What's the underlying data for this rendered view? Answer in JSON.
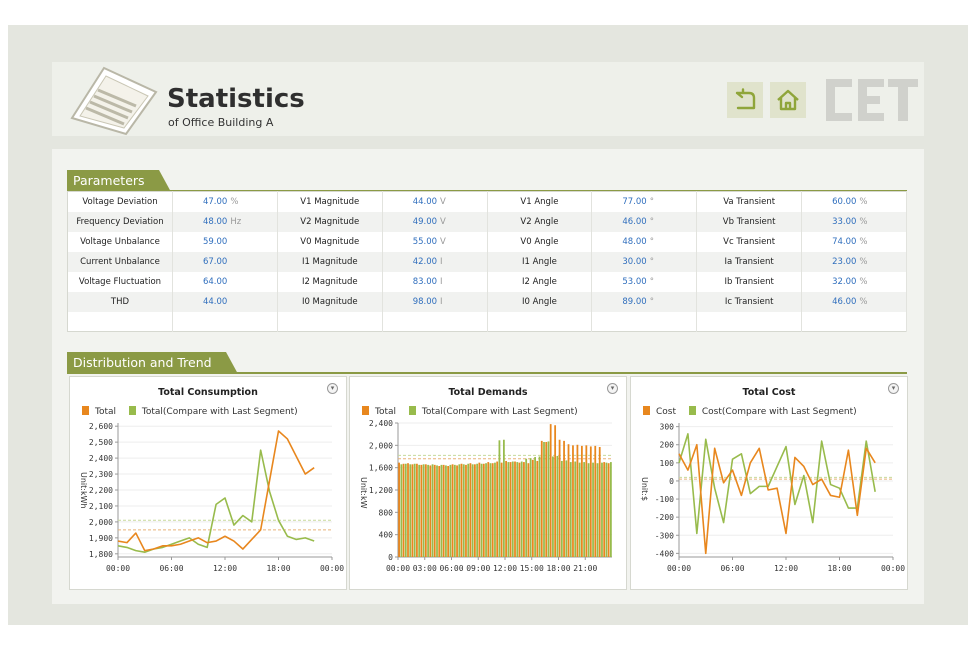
{
  "header": {
    "title": "Statistics",
    "subtitle": "of Office Building A",
    "brand": "CET"
  },
  "sections": {
    "parameters": "Parameters",
    "distribution": "Distribution and Trend"
  },
  "parameters": {
    "rows": [
      [
        {
          "label": "Voltage Deviation",
          "value": "47.00",
          "unit": "%"
        },
        {
          "label": "V1 Magnitude",
          "value": "44.00",
          "unit": "V"
        },
        {
          "label": "V1 Angle",
          "value": "77.00",
          "unit": "°"
        },
        {
          "label": "Va Transient",
          "value": "60.00",
          "unit": "%"
        }
      ],
      [
        {
          "label": "Frequency Deviation",
          "value": "48.00",
          "unit": "Hz"
        },
        {
          "label": "V2 Magnitude",
          "value": "49.00",
          "unit": "V"
        },
        {
          "label": "V2 Angle",
          "value": "46.00",
          "unit": "°"
        },
        {
          "label": "Vb Transient",
          "value": "33.00",
          "unit": "%"
        }
      ],
      [
        {
          "label": "Voltage Unbalance",
          "value": "59.00",
          "unit": ""
        },
        {
          "label": "V0 Magnitude",
          "value": "55.00",
          "unit": "V"
        },
        {
          "label": "V0 Angle",
          "value": "48.00",
          "unit": "°"
        },
        {
          "label": "Vc Transient",
          "value": "74.00",
          "unit": "%"
        }
      ],
      [
        {
          "label": "Current Unbalance",
          "value": "67.00",
          "unit": ""
        },
        {
          "label": "I1 Magnitude",
          "value": "42.00",
          "unit": "I"
        },
        {
          "label": "I1 Angle",
          "value": "30.00",
          "unit": "°"
        },
        {
          "label": "Ia Transient",
          "value": "23.00",
          "unit": "%"
        }
      ],
      [
        {
          "label": "Voltage Fluctuation",
          "value": "64.00",
          "unit": ""
        },
        {
          "label": "I2 Magnitude",
          "value": "83.00",
          "unit": "I"
        },
        {
          "label": "I2 Angle",
          "value": "53.00",
          "unit": "°"
        },
        {
          "label": "Ib Transient",
          "value": "32.00",
          "unit": "%"
        }
      ],
      [
        {
          "label": "THD",
          "value": "44.00",
          "unit": ""
        },
        {
          "label": "I0 Magnitude",
          "value": "98.00",
          "unit": "I"
        },
        {
          "label": "I0 Angle",
          "value": "89.00",
          "unit": "°"
        },
        {
          "label": "Ic Transient",
          "value": "46.00",
          "unit": "%"
        }
      ]
    ]
  },
  "colors": {
    "orange": "#e8871e",
    "green": "#98bb4c",
    "accent": "#8b9a45",
    "value_blue": "#2f6ebd"
  },
  "chart_data": [
    {
      "type": "line",
      "title": "Total Consumption",
      "ylabel": "Unit:kWh",
      "legend": [
        "Total",
        "Total(Compare with Last Segment)"
      ],
      "x_ticks": [
        "00:00",
        "06:00",
        "12:00",
        "18:00",
        "00:00"
      ],
      "y_ticks": [
        1800,
        1900,
        2000,
        2100,
        2200,
        2300,
        2400,
        2500,
        2600
      ],
      "y_tick_labels": [
        "1,800",
        "1,900",
        "2,000",
        "2,100",
        "2,200",
        "2,300",
        "2,400",
        "2,500",
        "2,600"
      ],
      "ylim": [
        1780,
        2620
      ],
      "xlim": [
        0,
        24
      ],
      "series": [
        {
          "name": "Total",
          "color": "#e8871e",
          "x": [
            0,
            1,
            2,
            3,
            4,
            5,
            6,
            7,
            8,
            9,
            10,
            11,
            12,
            13,
            14,
            15,
            16,
            17,
            18,
            19,
            20,
            21,
            22
          ],
          "values": [
            1880,
            1870,
            1930,
            1820,
            1830,
            1850,
            1850,
            1860,
            1880,
            1900,
            1870,
            1880,
            1910,
            1880,
            1830,
            1890,
            1950,
            2260,
            2570,
            2520,
            2410,
            2300,
            2340
          ]
        },
        {
          "name": "Total(Compare with Last Segment)",
          "color": "#98bb4c",
          "x": [
            0,
            1,
            2,
            3,
            4,
            5,
            6,
            7,
            8,
            9,
            10,
            11,
            12,
            13,
            14,
            15,
            16,
            17,
            18,
            19,
            20,
            21,
            22
          ],
          "values": [
            1850,
            1840,
            1820,
            1810,
            1830,
            1840,
            1860,
            1880,
            1900,
            1860,
            1840,
            2110,
            2150,
            1980,
            2040,
            2000,
            2450,
            2190,
            2010,
            1910,
            1890,
            1900,
            1880
          ]
        }
      ],
      "avg_lines": [
        1950,
        2010
      ]
    },
    {
      "type": "bar",
      "title": "Total Demands",
      "ylabel": "Unit:kW",
      "legend": [
        "Total",
        "Total(Compare with Last Segment)"
      ],
      "x_ticks": [
        "00:00",
        "03:00",
        "06:00",
        "09:00",
        "12:00",
        "15:00",
        "18:00",
        "21:00"
      ],
      "y_ticks": [
        0,
        400,
        800,
        1200,
        1600,
        2000,
        2400
      ],
      "y_tick_labels": [
        "0",
        "400",
        "800",
        "1,200",
        "1,600",
        "2,000",
        "2,400"
      ],
      "ylim": [
        0,
        2400
      ],
      "xlim": [
        0,
        24
      ],
      "series": [
        {
          "name": "Total",
          "color": "#e8871e",
          "hourly": [
            1690,
            1680,
            1670,
            1660,
            1650,
            1650,
            1660,
            1670,
            1680,
            1690,
            1700,
            1710,
            1720,
            1710,
            1700,
            1740,
            2080,
            2380,
            2100,
            2020,
            2010,
            2000,
            1990,
            1700
          ]
        },
        {
          "name": "Total(Compare with Last Segment)",
          "color": "#98bb4c",
          "hourly": [
            1660,
            1660,
            1650,
            1650,
            1640,
            1640,
            1650,
            1660,
            1660,
            1670,
            1680,
            2090,
            1700,
            1700,
            1760,
            1790,
            2060,
            1800,
            1720,
            1700,
            1690,
            1680,
            1680,
            1690
          ]
        }
      ],
      "avg_lines": [
        1760,
        1820
      ]
    },
    {
      "type": "line",
      "title": "Total Cost",
      "ylabel": "Unit:$",
      "legend": [
        "Cost",
        "Cost(Compare with Last Segment)"
      ],
      "x_ticks": [
        "00:00",
        "06:00",
        "12:00",
        "18:00",
        "00:00"
      ],
      "y_ticks": [
        -400,
        -300,
        -200,
        -100,
        0,
        100,
        200,
        300
      ],
      "y_tick_labels": [
        "-400",
        "-300",
        "-200",
        "-100",
        "0",
        "100",
        "200",
        "300"
      ],
      "ylim": [
        -420,
        320
      ],
      "xlim": [
        0,
        24
      ],
      "series": [
        {
          "name": "Cost",
          "color": "#e8871e",
          "x": [
            0,
            1,
            2,
            3,
            4,
            5,
            6,
            7,
            8,
            9,
            10,
            11,
            12,
            13,
            14,
            15,
            16,
            17,
            18,
            19,
            20,
            21,
            22
          ],
          "values": [
            150,
            60,
            200,
            -400,
            180,
            -10,
            60,
            -80,
            100,
            180,
            -50,
            -40,
            -290,
            130,
            80,
            -20,
            10,
            -80,
            -90,
            170,
            -190,
            180,
            100
          ]
        },
        {
          "name": "Cost(Compare with Last Segment)",
          "color": "#98bb4c",
          "x": [
            0,
            1,
            2,
            3,
            4,
            5,
            6,
            7,
            8,
            9,
            10,
            11,
            12,
            13,
            14,
            15,
            16,
            17,
            18,
            19,
            20,
            21,
            22
          ],
          "values": [
            100,
            260,
            -290,
            230,
            -40,
            -230,
            120,
            150,
            -70,
            -30,
            -30,
            80,
            190,
            -130,
            30,
            -230,
            220,
            -20,
            -40,
            -150,
            -150,
            220,
            -60
          ]
        }
      ],
      "avg_lines": [
        10,
        20
      ]
    }
  ]
}
